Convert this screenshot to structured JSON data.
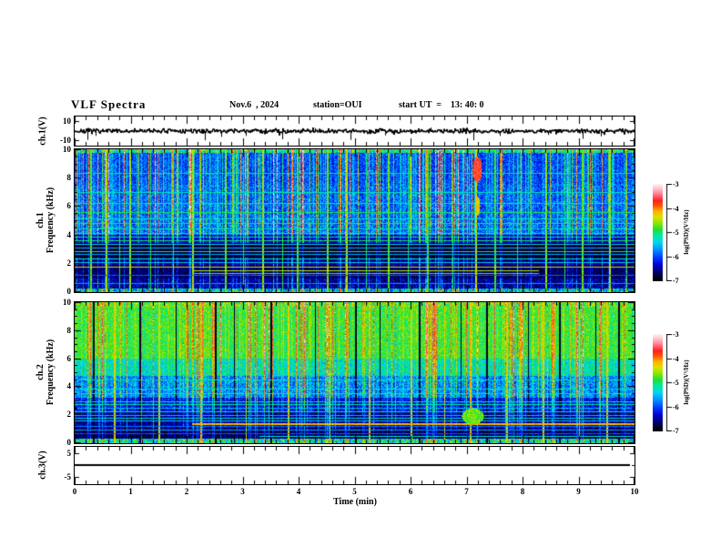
{
  "header": {
    "title": "VLF Spectra",
    "date": "Nov.6  , 2024",
    "station": "station=OUI",
    "start_ut": "start UT  =    13: 40: 0"
  },
  "chart_data": {
    "x_axis": {
      "label": "Time (min)",
      "range": [
        0,
        10
      ],
      "major_tick_step": 1,
      "minor_tick_step": 0.2,
      "tick_labels": [
        "0",
        "1",
        "2",
        "3",
        "4",
        "5",
        "6",
        "7",
        "8",
        "9",
        "10"
      ]
    },
    "colorbar": {
      "label": "log(PSD)(V²/Hz)",
      "range": [
        -3,
        -7
      ],
      "tick_labels": [
        "-3",
        "-4",
        "-5",
        "-6",
        "-7"
      ]
    },
    "colormap": {
      "range": [
        -7,
        -3
      ],
      "stops": [
        [
          0.0,
          "#000000"
        ],
        [
          0.06,
          "#000040"
        ],
        [
          0.16,
          "#0000d0"
        ],
        [
          0.24,
          "#0038ff"
        ],
        [
          0.32,
          "#0090ff"
        ],
        [
          0.4,
          "#00d8f0"
        ],
        [
          0.47,
          "#00e8a0"
        ],
        [
          0.53,
          "#20e030"
        ],
        [
          0.6,
          "#90e800"
        ],
        [
          0.66,
          "#e0e000"
        ],
        [
          0.72,
          "#ffb000"
        ],
        [
          0.78,
          "#ff5000"
        ],
        [
          0.83,
          "#ff2020"
        ],
        [
          0.9,
          "#ff8090"
        ],
        [
          0.96,
          "#ffc8d0"
        ],
        [
          1.0,
          "#fff0f2"
        ]
      ]
    },
    "panels": [
      {
        "id": "ch1_voltage",
        "type": "line",
        "ylabel": "ch.1(V)",
        "ylim": [
          -15,
          15
        ],
        "yticks": [
          10,
          -10
        ],
        "ytick_labels": [
          "10",
          "-10"
        ],
        "baseline_v": 0,
        "noise_v": 0.9,
        "seed": 7,
        "spikes": [
          {
            "t": 0.22,
            "v": -9
          },
          {
            "t": 0.38,
            "v": -5
          },
          {
            "t": 2.33,
            "v": -9.5
          },
          {
            "t": 2.62,
            "v": -6
          },
          {
            "t": 3.05,
            "v": -5
          },
          {
            "t": 3.7,
            "v": -8.5
          },
          {
            "t": 4.3,
            "v": 3
          },
          {
            "t": 4.93,
            "v": -9
          },
          {
            "t": 5.55,
            "v": -4.5
          },
          {
            "t": 6.35,
            "v": 3.5
          },
          {
            "t": 7.12,
            "v": -9.5
          },
          {
            "t": 7.6,
            "v": -5
          },
          {
            "t": 8.45,
            "v": -4
          },
          {
            "t": 9.07,
            "v": -8
          },
          {
            "t": 9.4,
            "v": -5.5
          }
        ]
      },
      {
        "id": "ch1_spectrogram",
        "type": "heatmap",
        "ylabel_line1": "ch.1",
        "ylabel_line2": "Frequency (kHz)",
        "ylim": [
          0,
          10
        ],
        "yticks": [
          0,
          2,
          4,
          6,
          8,
          10
        ],
        "ytick_labels": [
          "0",
          "2",
          "4",
          "6",
          "8",
          "10"
        ],
        "seed": 42,
        "bands": [
          {
            "f_lo": 9.75,
            "f_hi": 10.01,
            "base": -5.3,
            "cf": 0.8,
            "sp": 1.3
          },
          {
            "f_lo": 7.6,
            "f_hi": 9.75,
            "base": -6.15,
            "cf": 1.0,
            "sp": 0.75
          },
          {
            "f_lo": 4.0,
            "f_hi": 7.6,
            "base": -6.05,
            "cf": 0.95,
            "sp": 0.85
          },
          {
            "f_lo": 3.4,
            "f_hi": 4.0,
            "base": -6.5,
            "cf": 0.6,
            "sp": 0.6
          },
          {
            "f_lo": 2.4,
            "f_hi": 3.4,
            "base": -6.9,
            "cf": 0.22,
            "sp": 0.3
          },
          {
            "f_lo": 1.8,
            "f_hi": 2.4,
            "base": -6.65,
            "cf": 0.4,
            "sp": 0.6
          },
          {
            "f_lo": 0.9,
            "f_hi": 1.8,
            "base": -6.75,
            "cf": 0.3,
            "sp": 0.55
          },
          {
            "f_lo": 0.25,
            "f_hi": 0.9,
            "base": -6.6,
            "cf": 0.4,
            "sp": 0.8
          },
          {
            "f_lo": 0.0,
            "f_hi": 0.25,
            "base": -5.6,
            "cf": 0.6,
            "sp": 1.5
          }
        ],
        "hlines": [
          {
            "f": 8.35,
            "v": -5.0
          },
          {
            "f": 7.0,
            "v": -5.2
          },
          {
            "f": 6.25,
            "v": -5.35
          },
          {
            "f": 5.6,
            "v": -4.95
          },
          {
            "f": 5.15,
            "v": -5.3
          },
          {
            "f": 4.8,
            "v": -4.9
          },
          {
            "f": 4.45,
            "v": -5.2
          },
          {
            "f": 4.1,
            "v": -5.3
          },
          {
            "f": 3.85,
            "v": -5.05
          },
          {
            "f": 3.6,
            "v": -4.95
          },
          {
            "f": 3.35,
            "v": -5.4
          },
          {
            "f": 3.1,
            "v": -5.5
          },
          {
            "f": 2.85,
            "v": -5.2
          },
          {
            "f": 2.6,
            "v": -5.6
          },
          {
            "f": 2.3,
            "v": -5.15
          },
          {
            "f": 2.05,
            "v": -5.45
          },
          {
            "f": 1.7,
            "v": -4.35
          },
          {
            "f": 1.5,
            "v": -4.5,
            "t0": 2.1,
            "t1": 8.3
          },
          {
            "f": 1.3,
            "v": -4.7,
            "t0": 2.1,
            "t1": 8.3
          },
          {
            "f": 1.15,
            "v": -5.9
          },
          {
            "f": 0.6,
            "v": -5.7
          }
        ],
        "vlines": [
          {
            "t": 0.28,
            "v": -4.7,
            "w": 2
          },
          {
            "t": 0.55,
            "v": -4.5,
            "w": 2
          },
          {
            "t": 0.8,
            "v": -5.0,
            "w": 1
          },
          {
            "t": 0.97,
            "v": -4.6,
            "w": 2
          },
          {
            "t": 1.35,
            "v": -4.9,
            "w": 1
          },
          {
            "t": 1.75,
            "v": -4.8,
            "w": 1
          },
          {
            "t": 2.1,
            "v": -4.45,
            "w": 2
          },
          {
            "t": 2.4,
            "v": -5.0,
            "w": 1
          },
          {
            "t": 2.68,
            "v": -4.7,
            "w": 2
          },
          {
            "t": 3.0,
            "v": -4.9,
            "w": 1
          },
          {
            "t": 3.35,
            "v": -4.55,
            "w": 2
          },
          {
            "t": 3.7,
            "v": -4.9,
            "w": 1
          },
          {
            "t": 3.97,
            "v": -4.75,
            "w": 2
          },
          {
            "t": 4.5,
            "v": -4.65,
            "w": 2
          },
          {
            "t": 4.85,
            "v": -4.45,
            "w": 2
          },
          {
            "t": 5.2,
            "v": -4.95,
            "w": 1
          },
          {
            "t": 5.6,
            "v": -4.7,
            "w": 2
          },
          {
            "t": 5.95,
            "v": -5.0,
            "w": 1
          },
          {
            "t": 6.3,
            "v": -4.8,
            "w": 2
          },
          {
            "t": 6.75,
            "v": -4.9,
            "w": 1
          },
          {
            "t": 7.15,
            "v": -4.35,
            "w": 2
          },
          {
            "t": 7.5,
            "v": -4.8,
            "w": 2
          },
          {
            "t": 7.9,
            "v": -5.0,
            "w": 1
          },
          {
            "t": 8.4,
            "v": -4.6,
            "w": 2
          },
          {
            "t": 8.75,
            "v": -4.9,
            "w": 1
          },
          {
            "t": 9.05,
            "v": -4.7,
            "w": 2
          },
          {
            "t": 9.55,
            "v": -4.5,
            "w": 2
          },
          {
            "t": 9.85,
            "v": -4.8,
            "w": 1
          }
        ],
        "blobs": [
          {
            "t": 7.18,
            "f": 8.6,
            "v": -3.7,
            "w": 5,
            "h": 14
          },
          {
            "t": 7.18,
            "f": 6.0,
            "v": -4.3,
            "w": 3,
            "h": 10
          }
        ]
      },
      {
        "id": "ch2_spectrogram",
        "type": "heatmap",
        "ylabel_line1": "ch.2",
        "ylabel_line2": "Frequency (kHz)",
        "ylim": [
          0,
          10
        ],
        "yticks": [
          0,
          2,
          4,
          6,
          8,
          10
        ],
        "ytick_labels": [
          "0",
          "2",
          "4",
          "6",
          "8",
          "10"
        ],
        "seed": 1337,
        "bands": [
          {
            "f_lo": 9.7,
            "f_hi": 10.01,
            "base": -4.8,
            "cf": 0.5,
            "sp": 1.1
          },
          {
            "f_lo": 6.0,
            "f_hi": 9.7,
            "base": -4.95,
            "cf": 0.55,
            "sp": 0.65
          },
          {
            "f_lo": 4.8,
            "f_hi": 6.0,
            "base": -5.35,
            "cf": 0.6,
            "sp": 0.8
          },
          {
            "f_lo": 3.2,
            "f_hi": 4.8,
            "base": -5.85,
            "cf": 0.7,
            "sp": 0.9
          },
          {
            "f_lo": 2.2,
            "f_hi": 3.2,
            "base": -6.35,
            "cf": 0.55,
            "sp": 0.8
          },
          {
            "f_lo": 1.0,
            "f_hi": 2.2,
            "base": -6.6,
            "cf": 0.4,
            "sp": 0.7
          },
          {
            "f_lo": 0.3,
            "f_hi": 1.0,
            "base": -6.75,
            "cf": 0.3,
            "sp": 0.6
          },
          {
            "f_lo": 0.0,
            "f_hi": 0.3,
            "base": -5.35,
            "cf": 0.5,
            "sp": 1.4
          }
        ],
        "hlines": [
          {
            "f": 4.45,
            "v": -5.2
          },
          {
            "f": 3.8,
            "v": -5.35
          },
          {
            "f": 3.5,
            "v": -5.25
          },
          {
            "f": 2.95,
            "v": -5.35
          },
          {
            "f": 2.7,
            "v": -5.15
          },
          {
            "f": 2.45,
            "v": -5.5
          },
          {
            "f": 2.2,
            "v": -5.3
          },
          {
            "f": 1.95,
            "v": -5.55
          },
          {
            "f": 1.75,
            "v": -5.25
          },
          {
            "f": 1.55,
            "v": -5.5
          },
          {
            "f": 1.35,
            "v": -4.15,
            "t0": 2.1,
            "t1": 10,
            "th": 2
          },
          {
            "f": 1.15,
            "v": -5.8
          },
          {
            "f": 0.9,
            "v": -5.6
          },
          {
            "f": 0.65,
            "v": -5.9
          },
          {
            "f": 0.45,
            "v": -5.25,
            "t0": 3.3,
            "t1": 10
          }
        ],
        "vlines": [
          {
            "t": 0.32,
            "v": -6.9,
            "w": 2
          },
          {
            "t": 1.15,
            "v": -6.9,
            "w": 2
          },
          {
            "t": 1.8,
            "v": -6.9,
            "w": 1
          },
          {
            "t": 2.5,
            "v": -6.9,
            "w": 2
          },
          {
            "t": 2.85,
            "v": -6.9,
            "w": 1
          },
          {
            "t": 3.5,
            "v": -6.9,
            "w": 2
          },
          {
            "t": 4.3,
            "v": -6.9,
            "w": 1
          },
          {
            "t": 5.0,
            "v": -6.9,
            "w": 2
          },
          {
            "t": 5.45,
            "v": -6.9,
            "w": 1
          },
          {
            "t": 6.15,
            "v": -6.9,
            "w": 2
          },
          {
            "t": 6.9,
            "v": -6.9,
            "w": 1
          },
          {
            "t": 7.35,
            "v": -6.9,
            "w": 2
          },
          {
            "t": 8.1,
            "v": -6.9,
            "w": 1
          },
          {
            "t": 8.65,
            "v": -6.9,
            "w": 2
          },
          {
            "t": 9.3,
            "v": -6.9,
            "w": 1
          },
          {
            "t": 9.7,
            "v": -6.9,
            "w": 2
          },
          {
            "t": 0.7,
            "v": -4.3,
            "w": 2
          },
          {
            "t": 1.5,
            "v": -4.4,
            "w": 2
          },
          {
            "t": 2.25,
            "v": -4.2,
            "w": 2
          },
          {
            "t": 3.05,
            "v": -4.4,
            "w": 1
          },
          {
            "t": 3.8,
            "v": -4.3,
            "w": 2
          },
          {
            "t": 4.55,
            "v": -4.5,
            "w": 1
          },
          {
            "t": 5.25,
            "v": -4.2,
            "w": 2
          },
          {
            "t": 6.0,
            "v": -4.4,
            "w": 2
          },
          {
            "t": 6.6,
            "v": -4.3,
            "w": 1
          },
          {
            "t": 7.05,
            "v": -4.2,
            "w": 2
          },
          {
            "t": 7.7,
            "v": -4.5,
            "w": 2
          },
          {
            "t": 8.35,
            "v": -4.3,
            "w": 2
          },
          {
            "t": 9.0,
            "v": -4.4,
            "w": 1
          },
          {
            "t": 9.5,
            "v": -4.3,
            "w": 2
          }
        ],
        "blobs": [
          {
            "t": 7.1,
            "f": 1.9,
            "v": -4.7,
            "w": 12,
            "h": 9
          }
        ]
      },
      {
        "id": "ch3_voltage",
        "type": "line",
        "ylabel": "ch.3(V)",
        "ylim": [
          -7.5,
          7.5
        ],
        "yticks": [
          5,
          -5
        ],
        "ytick_labels": [
          "5",
          "-5"
        ],
        "flat_v": 0,
        "line_end_t": 9.92,
        "seed": 3
      }
    ]
  }
}
